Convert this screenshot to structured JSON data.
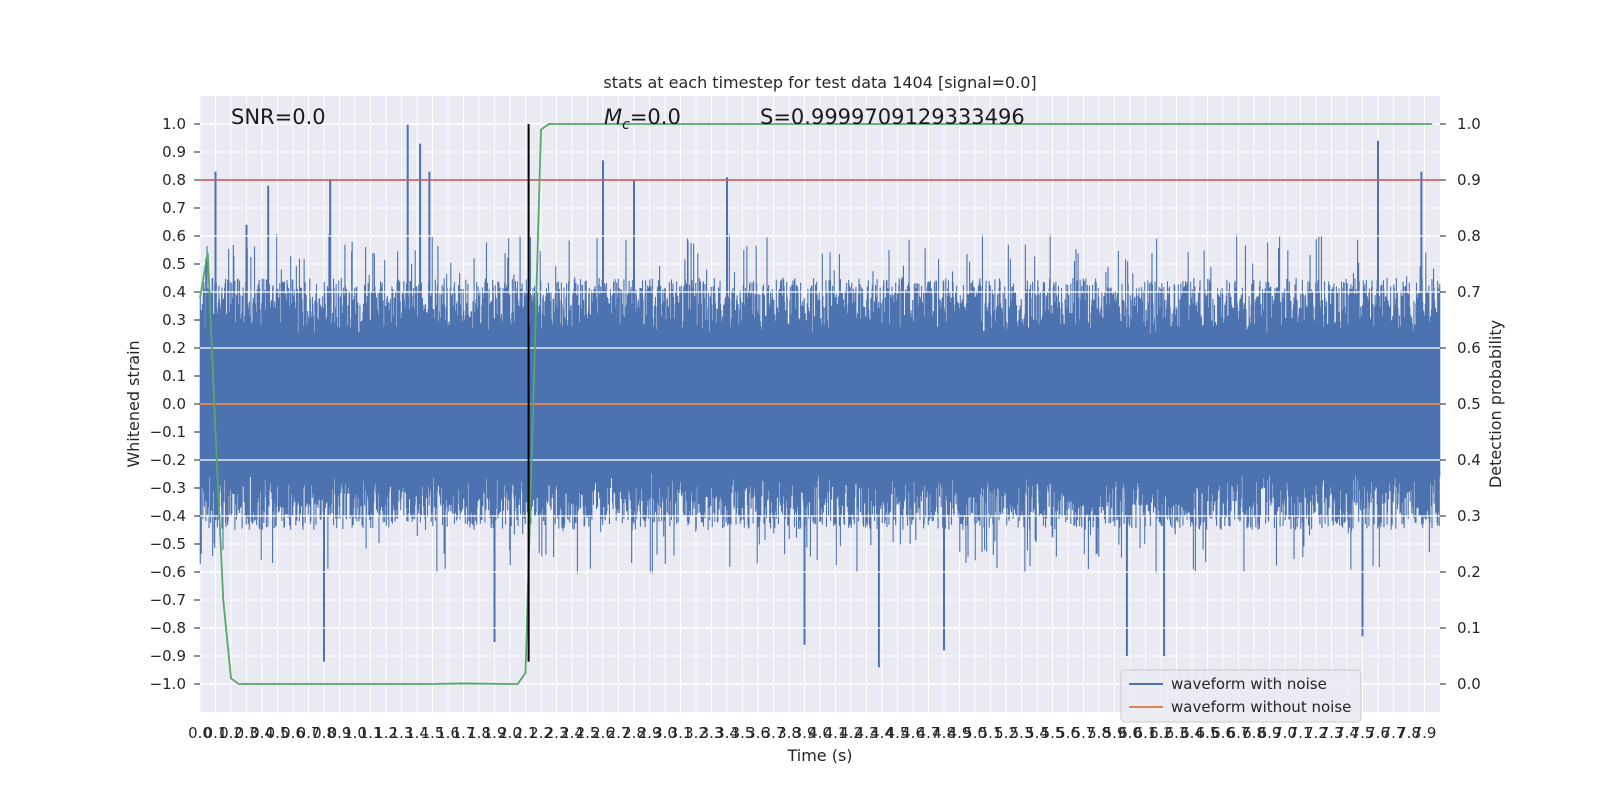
{
  "chart_data": {
    "type": "line",
    "title": "stats at each timestep for test data 1404 [signal=0.0]",
    "xlabel": "Time (s)",
    "ylabel": "Whitened strain",
    "y2label": "Detection probability",
    "xlim": [
      0.0,
      8.0
    ],
    "ylim": [
      -1.1,
      1.1
    ],
    "y2lim": [
      -0.05,
      1.05
    ],
    "xticks": [
      0.0,
      0.1,
      0.2,
      0.3,
      0.4,
      0.5,
      0.6,
      0.7,
      0.8,
      0.9,
      1.0,
      1.1,
      1.2,
      1.3,
      1.4,
      1.5,
      1.6,
      1.7,
      1.8,
      1.9,
      2.0,
      2.1,
      2.2,
      2.3,
      2.4,
      2.5,
      2.6,
      2.7,
      2.8,
      2.9,
      3.0,
      3.1,
      3.2,
      3.3,
      3.4,
      3.5,
      3.6,
      3.7,
      3.8,
      3.9,
      4.0,
      4.1,
      4.2,
      4.3,
      4.4,
      4.5,
      4.6,
      4.7,
      4.8,
      4.9,
      5.0,
      5.1,
      5.2,
      5.3,
      5.4,
      5.5,
      5.6,
      5.7,
      5.8,
      5.9,
      6.0,
      6.1,
      6.2,
      6.3,
      6.4,
      6.5,
      6.6,
      6.7,
      6.8,
      6.9,
      7.0,
      7.1,
      7.2,
      7.3,
      7.4,
      7.5,
      7.6,
      7.7,
      7.8,
      7.9
    ],
    "yticks": [
      1.0,
      0.9,
      0.8,
      0.7,
      0.6,
      0.5,
      0.4,
      0.3,
      0.2,
      0.1,
      0.0,
      -0.1,
      -0.2,
      -0.3,
      -0.4,
      -0.5,
      -0.6,
      -0.7,
      -0.8,
      -0.9,
      -1.0
    ],
    "y2ticks": [
      1.0,
      0.9,
      0.8,
      0.7,
      0.6,
      0.5,
      0.4,
      0.3,
      0.2,
      0.1,
      0.0
    ],
    "grid": true,
    "legend_placement": "lower-right",
    "annotations": {
      "snr": "SNR=0.0",
      "mc": "M",
      "mc_sub": "c",
      "mc_value": "=0.0",
      "s": "S=0.9999709129333496"
    },
    "series": [
      {
        "name": "waveform with noise",
        "color": "#4c72b0",
        "noise_envelope": {
          "typical_max": 0.45,
          "typical_min": -0.45
        },
        "peaks": [
          {
            "x": 0.04,
            "y": 0.52
          },
          {
            "x": 0.1,
            "y": 0.83
          },
          {
            "x": 0.3,
            "y": 0.64
          },
          {
            "x": 0.44,
            "y": 0.78
          },
          {
            "x": 0.84,
            "y": 0.8
          },
          {
            "x": 1.34,
            "y": 1.0
          },
          {
            "x": 1.42,
            "y": 0.93
          },
          {
            "x": 1.48,
            "y": 0.83
          },
          {
            "x": 2.6,
            "y": 0.87
          },
          {
            "x": 2.8,
            "y": 0.8
          },
          {
            "x": 3.4,
            "y": 0.81
          },
          {
            "x": 7.6,
            "y": 0.94
          },
          {
            "x": 7.88,
            "y": 0.83
          },
          {
            "x": 0.8,
            "y": -0.92
          },
          {
            "x": 4.38,
            "y": -0.94
          },
          {
            "x": 4.8,
            "y": -0.88
          },
          {
            "x": 1.9,
            "y": -0.85
          },
          {
            "x": 5.98,
            "y": -0.9
          },
          {
            "x": 6.22,
            "y": -0.9
          },
          {
            "x": 3.9,
            "y": -0.86
          },
          {
            "x": 7.5,
            "y": -0.83
          }
        ]
      },
      {
        "name": "waveform without noise",
        "color": "#dd8452",
        "x": [
          0.0,
          8.0
        ],
        "y": [
          0.0,
          0.0
        ]
      },
      {
        "name": "detection probability",
        "color": "#55a868",
        "axis": "right",
        "x": [
          0.0,
          0.05,
          0.1,
          0.15,
          0.2,
          0.25,
          0.5,
          1.0,
          1.5,
          1.7,
          2.0,
          2.05,
          2.1,
          2.15,
          2.2,
          2.25,
          2.3,
          3.0,
          5.0,
          7.95
        ],
        "y": [
          0.69,
          0.77,
          0.45,
          0.15,
          0.01,
          0.0,
          0.0,
          0.0,
          0.0,
          0.001,
          0.0,
          0.0,
          0.02,
          0.5,
          0.99,
          1.0,
          1.0,
          1.0,
          1.0,
          1.0
        ]
      }
    ],
    "threshold": {
      "axis": "right",
      "value": 0.9,
      "color": "#c44e52"
    },
    "vertical_marker": {
      "x": 2.12,
      "from": -0.92,
      "to": 1.0,
      "color": "#000000"
    }
  }
}
